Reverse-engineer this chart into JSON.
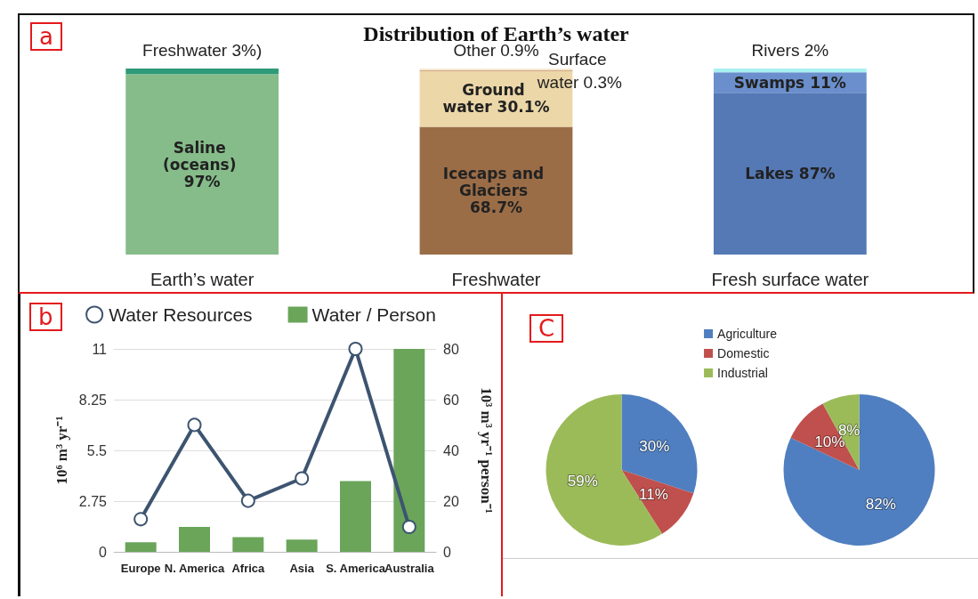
{
  "chart_data": [
    {
      "type": "bar",
      "title": "Distribution of Earth’s water",
      "annotations": [
        "a"
      ],
      "categories": [
        "Earth’s water",
        "Freshwater",
        "Fresh surface water"
      ],
      "stacked": true,
      "tick_labels": "x",
      "series": [
        {
          "color": "#86bc8a",
          "values": [
            97,
            null,
            null
          ],
          "value_labels": [
            "Saline (oceans) 97%",
            null,
            null
          ]
        },
        {
          "color": "#2e9a78",
          "values": [
            3,
            null,
            null
          ],
          "value_labels": [
            "Freshwater 3%)",
            null,
            null
          ]
        },
        {
          "color": "#9b6d47",
          "values": [
            null,
            68.7,
            null
          ],
          "value_labels": [
            null,
            "Icecaps and Glaciers 68.7%",
            null
          ]
        },
        {
          "color": "#ecd7a8",
          "values": [
            null,
            30.1,
            null
          ],
          "value_labels": [
            null,
            "Ground water 30.1%",
            null
          ]
        },
        {
          "color": "#b5603d",
          "values": [
            null,
            0.3,
            null
          ],
          "value_labels": [
            null,
            "Surface water 0.3%",
            null
          ]
        },
        {
          "color": "#f3ead2",
          "values": [
            null,
            0.9,
            null
          ],
          "value_labels": [
            null,
            "Other 0.9%",
            null
          ]
        },
        {
          "color": "#5479b5",
          "values": [
            null,
            null,
            87
          ],
          "value_labels": [
            null,
            null,
            "Lakes 87%"
          ]
        },
        {
          "color": "#6a8fcc",
          "values": [
            null,
            null,
            11
          ],
          "value_labels": [
            null,
            null,
            "Swamps 11%"
          ]
        },
        {
          "color": "#a9f0f0",
          "values": [
            null,
            null,
            2
          ],
          "value_labels": [
            null,
            null,
            "Rivers 2%"
          ]
        }
      ]
    },
    {
      "type": "bar",
      "annotations": [
        "b"
      ],
      "categories": [
        "Europe",
        "N. America",
        "Africa",
        "Asia",
        "S. America",
        "Australia"
      ],
      "ylabel": "10⁶ m³ yr⁻¹",
      "y2label": "10³ m³ yr⁻¹ person⁻¹",
      "ylim": [
        0,
        11
      ],
      "yticks": [
        0,
        2.75,
        5.5,
        8.25,
        11
      ],
      "y2lim": [
        0,
        80
      ],
      "y2ticks": [
        0,
        20,
        40,
        60,
        80
      ],
      "grid": "y",
      "legend": "top",
      "marker": "circle",
      "series": [
        {
          "name": "Water Resources",
          "type": "line",
          "color": "#3d5470",
          "values": [
            1.77,
            6.88,
            2.77,
            3.98,
            11,
            1.35
          ]
        },
        {
          "name": "Water / Person",
          "type": "bar",
          "axis": "y2",
          "color": "#6aa55a",
          "values": [
            3.8,
            9.8,
            5.8,
            4.8,
            27.9,
            80
          ]
        }
      ]
    },
    {
      "type": "pie",
      "annotations": [
        "C"
      ],
      "categories": [
        "Agriculture",
        "Domestic",
        "Industrial"
      ],
      "legend": "top",
      "series": [
        {
          "values": [
            30,
            11,
            59
          ],
          "colors": [
            "#4f7fc0",
            "#c0504d",
            "#9bbb59"
          ],
          "value_labels": [
            "30%",
            "11%",
            "59%"
          ]
        },
        {
          "values": [
            82,
            10,
            8
          ],
          "colors": [
            "#4f7fc0",
            "#c0504d",
            "#9bbb59"
          ],
          "value_labels": [
            "82%",
            "10%",
            "8%"
          ]
        }
      ]
    }
  ]
}
